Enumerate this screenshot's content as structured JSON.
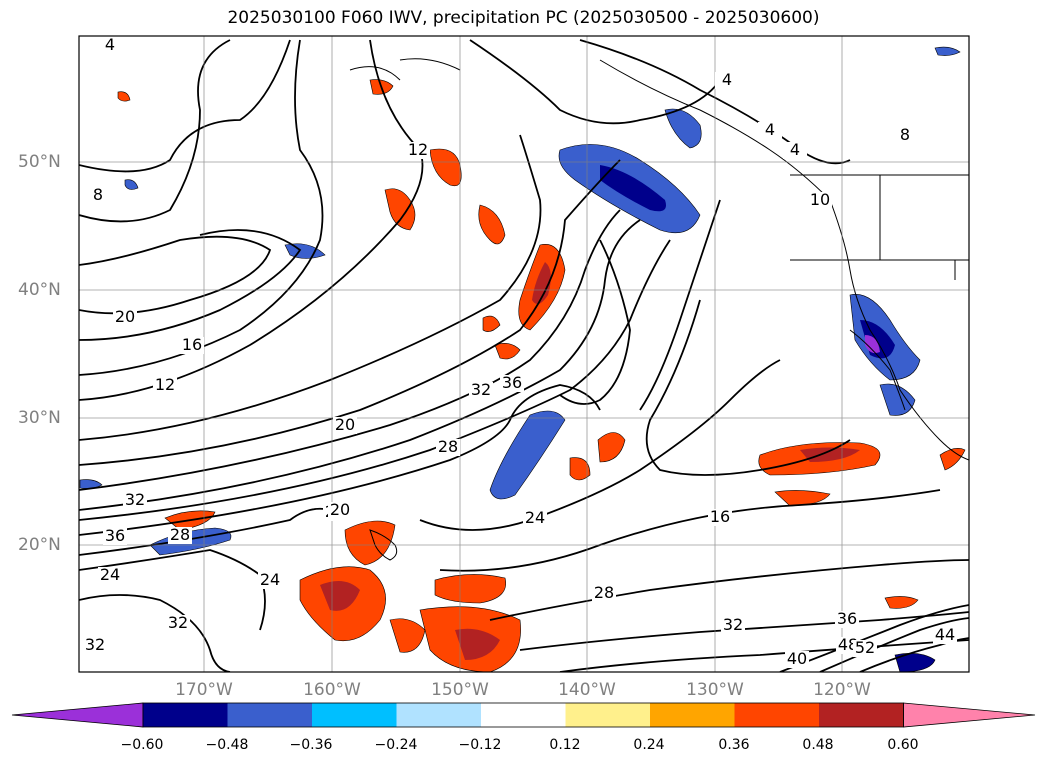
{
  "title": "2025030100 F060 IWV, precipitation PC (2025030500 - 2025030600)",
  "lat_labels": [
    "50°N",
    "40°N",
    "30°N",
    "20°N"
  ],
  "lon_labels": [
    "170°W",
    "160°W",
    "150°W",
    "140°W",
    "130°W",
    "120°W"
  ],
  "contour_labels": [
    "4",
    "4",
    "4",
    "4",
    "8",
    "8",
    "12",
    "12",
    "16",
    "16",
    "20",
    "20",
    "20",
    "24",
    "24",
    "24",
    "28",
    "28",
    "28",
    "32",
    "32",
    "32",
    "32",
    "32",
    "36",
    "36",
    "36",
    "40",
    "44",
    "48",
    "52",
    "20",
    "10"
  ],
  "colorbar": {
    "ticks": [
      "−0.60",
      "−0.48",
      "−0.36",
      "−0.24",
      "−0.12",
      "0.12",
      "0.24",
      "0.36",
      "0.48",
      "0.60"
    ],
    "colors": [
      "#9b30d9",
      "#00008b",
      "#3a5fcd",
      "#00bfff",
      "#b0e2ff",
      "#ffffff",
      "#fff08c",
      "#ffa500",
      "#ff4500",
      "#b22222",
      "#ff82ab"
    ]
  }
}
